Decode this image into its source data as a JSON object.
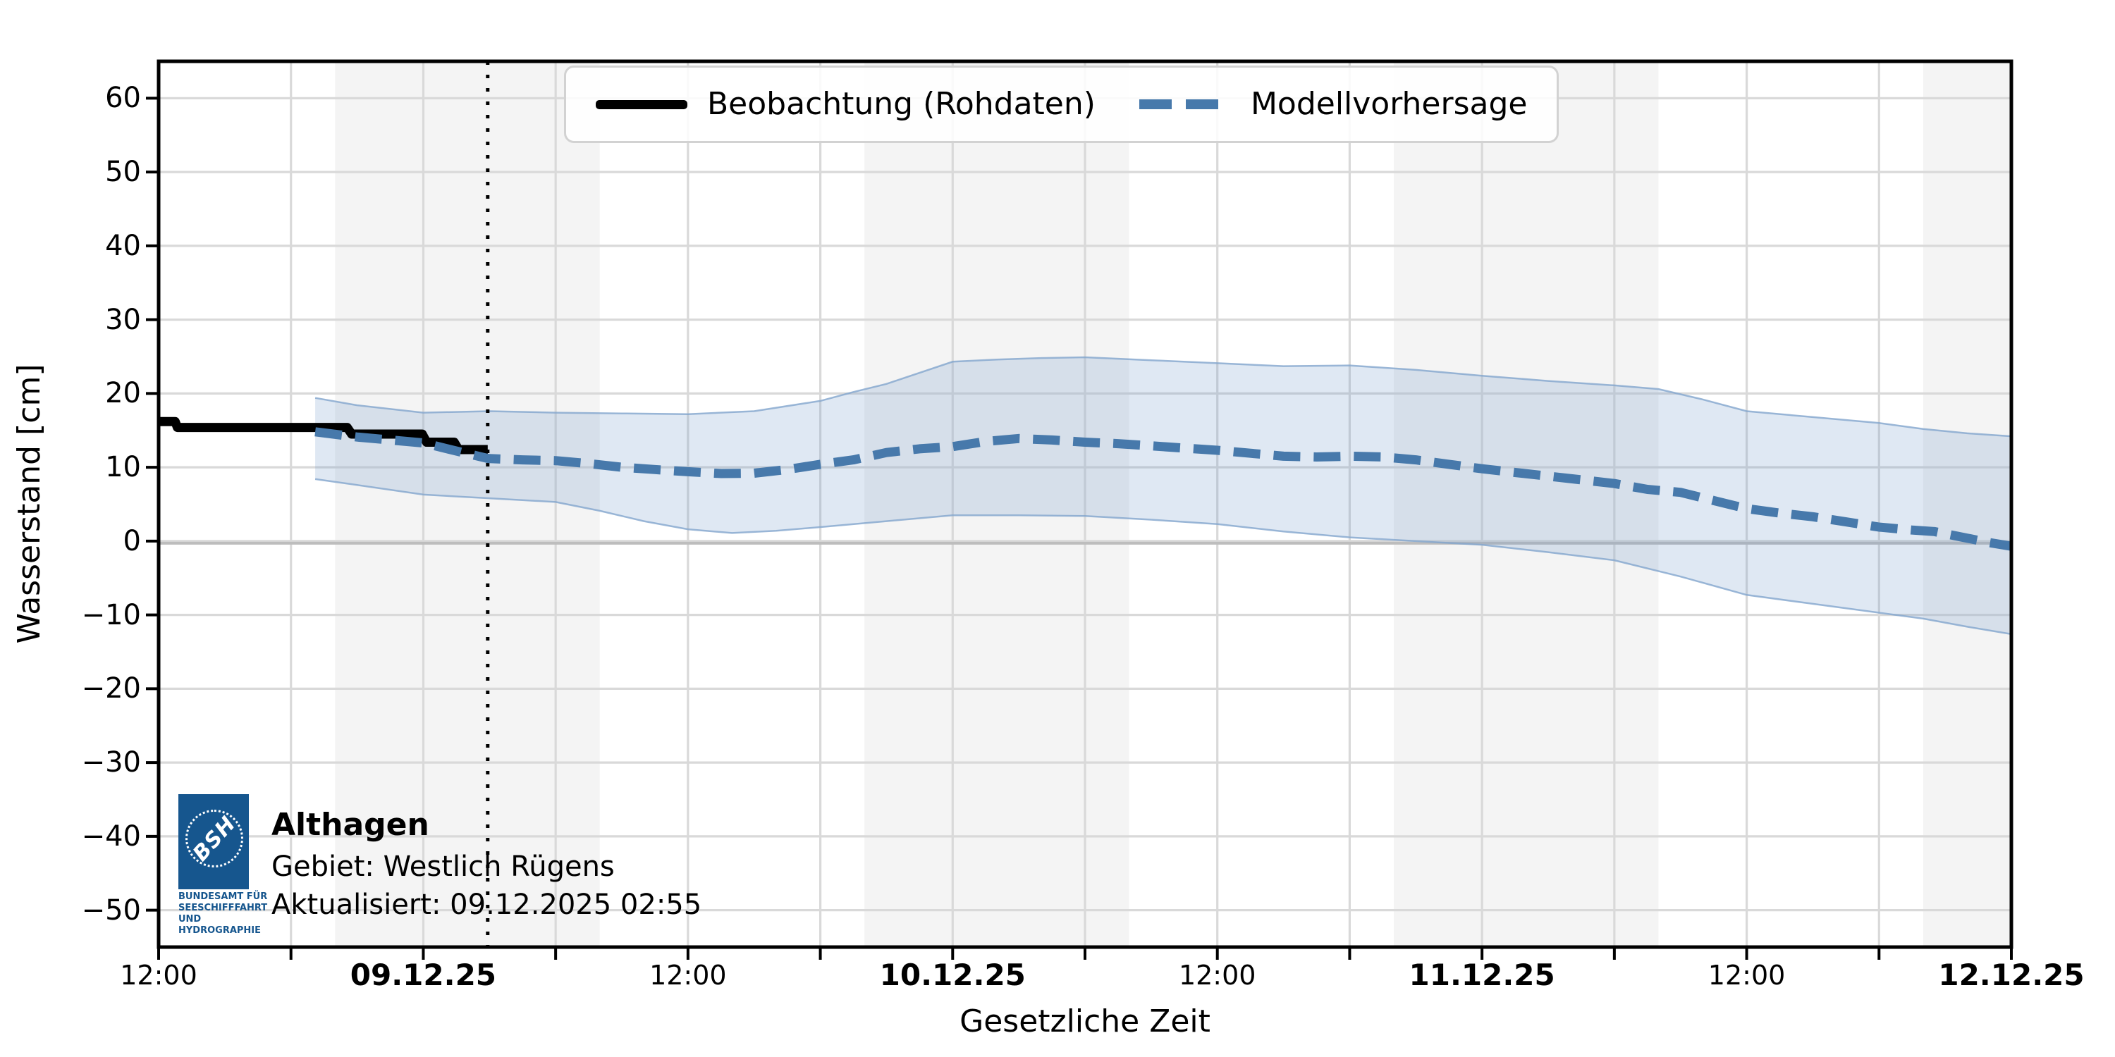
{
  "station": {
    "name": "Althagen",
    "area_label": "Gebiet: Westlich Rügens",
    "updated_label": "Aktualisiert: 09.12.2025 02:55"
  },
  "logo": {
    "acronym": "BSH",
    "org_lines": [
      "BUNDESAMT FÜR",
      "SEESCHIFFFAHRT",
      "UND",
      "HYDROGRAPHIE"
    ]
  },
  "legend": {
    "items": [
      {
        "label": "Beobachtung (Rohdaten)",
        "style": "solid-black"
      },
      {
        "label": "Modellvorhersage",
        "style": "dashed-blue"
      }
    ],
    "position": "upper center"
  },
  "axes": {
    "ylabel": "Wasserstand [cm]",
    "xlabel": "Gesetzliche Zeit"
  },
  "chart_data": {
    "type": "line",
    "title": "",
    "xlabel": "Gesetzliche Zeit",
    "ylabel": "Wasserstand [cm]",
    "x_unit": "hours since 08.12.2025 12:00 (Gesetzliche Zeit)",
    "xlim": [
      0,
      84
    ],
    "ylim": [
      -55,
      65
    ],
    "grid": true,
    "y_ticks": [
      {
        "v": 60,
        "label": "60"
      },
      {
        "v": 50,
        "label": "50"
      },
      {
        "v": 40,
        "label": "40"
      },
      {
        "v": 30,
        "label": "30"
      },
      {
        "v": 20,
        "label": "20"
      },
      {
        "v": 10,
        "label": "10"
      },
      {
        "v": 0,
        "label": "0"
      },
      {
        "v": -10,
        "label": "−10"
      },
      {
        "v": -20,
        "label": "−20"
      },
      {
        "v": -30,
        "label": "−30"
      },
      {
        "v": -40,
        "label": "−40"
      },
      {
        "v": -50,
        "label": "−50"
      }
    ],
    "x_ticks": [
      {
        "t": 0,
        "label": "12:00",
        "bold": false
      },
      {
        "t": 12,
        "label": "09.12.25",
        "bold": true
      },
      {
        "t": 24,
        "label": "12:00",
        "bold": false
      },
      {
        "t": 36,
        "label": "10.12.25",
        "bold": true
      },
      {
        "t": 48,
        "label": "12:00",
        "bold": false
      },
      {
        "t": 60,
        "label": "11.12.25",
        "bold": true
      },
      {
        "t": 72,
        "label": "12:00",
        "bold": false
      },
      {
        "t": 84,
        "label": "12.12.25",
        "bold": true
      }
    ],
    "minor_x_tick_step_hours": 6,
    "night_bands": [
      [
        8,
        20
      ],
      [
        32,
        44
      ],
      [
        56,
        68
      ],
      [
        80,
        84
      ]
    ],
    "now_line_hour": 14.92,
    "series": [
      {
        "name": "Beobachtung (Rohdaten)",
        "style": "solid_black_step",
        "points": [
          [
            0,
            16.2
          ],
          [
            0.75,
            16.2
          ],
          [
            0.85,
            15.4
          ],
          [
            8.55,
            15.4
          ],
          [
            8.75,
            14.5
          ],
          [
            11.95,
            14.5
          ],
          [
            12.15,
            13.4
          ],
          [
            13.4,
            13.4
          ],
          [
            13.6,
            12.4
          ],
          [
            14.92,
            12.4
          ]
        ]
      },
      {
        "name": "Modellvorhersage",
        "style": "dashed_blue",
        "points": [
          [
            7.1,
            14.8
          ],
          [
            9,
            14.1
          ],
          [
            10.5,
            13.7
          ],
          [
            12,
            13.3
          ],
          [
            13.5,
            12.2
          ],
          [
            14.92,
            11.2
          ],
          [
            16.5,
            11.0
          ],
          [
            18,
            10.9
          ],
          [
            19.5,
            10.5
          ],
          [
            21,
            10.0
          ],
          [
            22.5,
            9.7
          ],
          [
            24,
            9.4
          ],
          [
            25.5,
            9.15
          ],
          [
            27,
            9.2
          ],
          [
            28.5,
            9.7
          ],
          [
            30,
            10.4
          ],
          [
            31.5,
            11.0
          ],
          [
            33,
            12.0
          ],
          [
            34.5,
            12.5
          ],
          [
            36,
            12.8
          ],
          [
            37.5,
            13.5
          ],
          [
            39,
            13.9
          ],
          [
            40.5,
            13.7
          ],
          [
            42,
            13.4
          ],
          [
            43.5,
            13.2
          ],
          [
            45,
            12.9
          ],
          [
            46.5,
            12.6
          ],
          [
            48,
            12.3
          ],
          [
            49.5,
            11.9
          ],
          [
            51,
            11.5
          ],
          [
            52.5,
            11.4
          ],
          [
            54,
            11.5
          ],
          [
            55.5,
            11.4
          ],
          [
            57,
            11.0
          ],
          [
            58.5,
            10.4
          ],
          [
            60,
            9.8
          ],
          [
            61.5,
            9.3
          ],
          [
            63,
            8.8
          ],
          [
            64.5,
            8.3
          ],
          [
            66,
            7.8
          ],
          [
            67.5,
            7.0
          ],
          [
            69,
            6.6
          ],
          [
            70.5,
            5.5
          ],
          [
            72,
            4.4
          ],
          [
            73.5,
            3.8
          ],
          [
            75,
            3.3
          ],
          [
            76.5,
            2.6
          ],
          [
            78,
            1.9
          ],
          [
            79.5,
            1.5
          ],
          [
            80.5,
            1.3
          ],
          [
            82,
            0.4
          ],
          [
            83,
            -0.2
          ],
          [
            84,
            -0.7
          ]
        ]
      }
    ],
    "uncertainty_band": {
      "name": "Modellvorhersage Unsicherheitsbereich",
      "top": [
        [
          7.1,
          19.4
        ],
        [
          9,
          18.4
        ],
        [
          12,
          17.4
        ],
        [
          15,
          17.6
        ],
        [
          18,
          17.4
        ],
        [
          21,
          17.3
        ],
        [
          24,
          17.2
        ],
        [
          27,
          17.6
        ],
        [
          30,
          19.0
        ],
        [
          31.5,
          20.2
        ],
        [
          33,
          21.3
        ],
        [
          36,
          24.3
        ],
        [
          38,
          24.6
        ],
        [
          40,
          24.8
        ],
        [
          42,
          24.9
        ],
        [
          45,
          24.5
        ],
        [
          48,
          24.1
        ],
        [
          51,
          23.7
        ],
        [
          54,
          23.8
        ],
        [
          57,
          23.2
        ],
        [
          60,
          22.4
        ],
        [
          63,
          21.7
        ],
        [
          66,
          21.1
        ],
        [
          68,
          20.6
        ],
        [
          70,
          19.2
        ],
        [
          72,
          17.6
        ],
        [
          75,
          16.8
        ],
        [
          78,
          16.0
        ],
        [
          80,
          15.2
        ],
        [
          82,
          14.6
        ],
        [
          84,
          14.2
        ]
      ],
      "bottom": [
        [
          7.1,
          8.4
        ],
        [
          9,
          7.6
        ],
        [
          12,
          6.3
        ],
        [
          15,
          5.8
        ],
        [
          18,
          5.3
        ],
        [
          20,
          4.1
        ],
        [
          22,
          2.7
        ],
        [
          24,
          1.6
        ],
        [
          26,
          1.1
        ],
        [
          28,
          1.4
        ],
        [
          30,
          1.9
        ],
        [
          33,
          2.7
        ],
        [
          36,
          3.5
        ],
        [
          39,
          3.5
        ],
        [
          42,
          3.4
        ],
        [
          45,
          2.9
        ],
        [
          48,
          2.3
        ],
        [
          51,
          1.3
        ],
        [
          54,
          0.5
        ],
        [
          57,
          0.0
        ],
        [
          60,
          -0.5
        ],
        [
          63,
          -1.5
        ],
        [
          66,
          -2.6
        ],
        [
          69,
          -4.8
        ],
        [
          72,
          -7.3
        ],
        [
          75,
          -8.5
        ],
        [
          78,
          -9.7
        ],
        [
          80,
          -10.5
        ],
        [
          82,
          -11.6
        ],
        [
          84,
          -12.6
        ]
      ]
    },
    "colors": {
      "observation": "#000000",
      "forecast": "#4779ab",
      "band_fill": "rgba(110,152,200,0.22)",
      "band_edge": "rgba(130,165,205,0.8)",
      "night_band": "#f4f4f4",
      "grid": "#d9d9d9",
      "zero_line": "#bdbdbd",
      "spine": "#000000",
      "now_line": "#000000",
      "bsh_blue": "#16568e"
    }
  }
}
